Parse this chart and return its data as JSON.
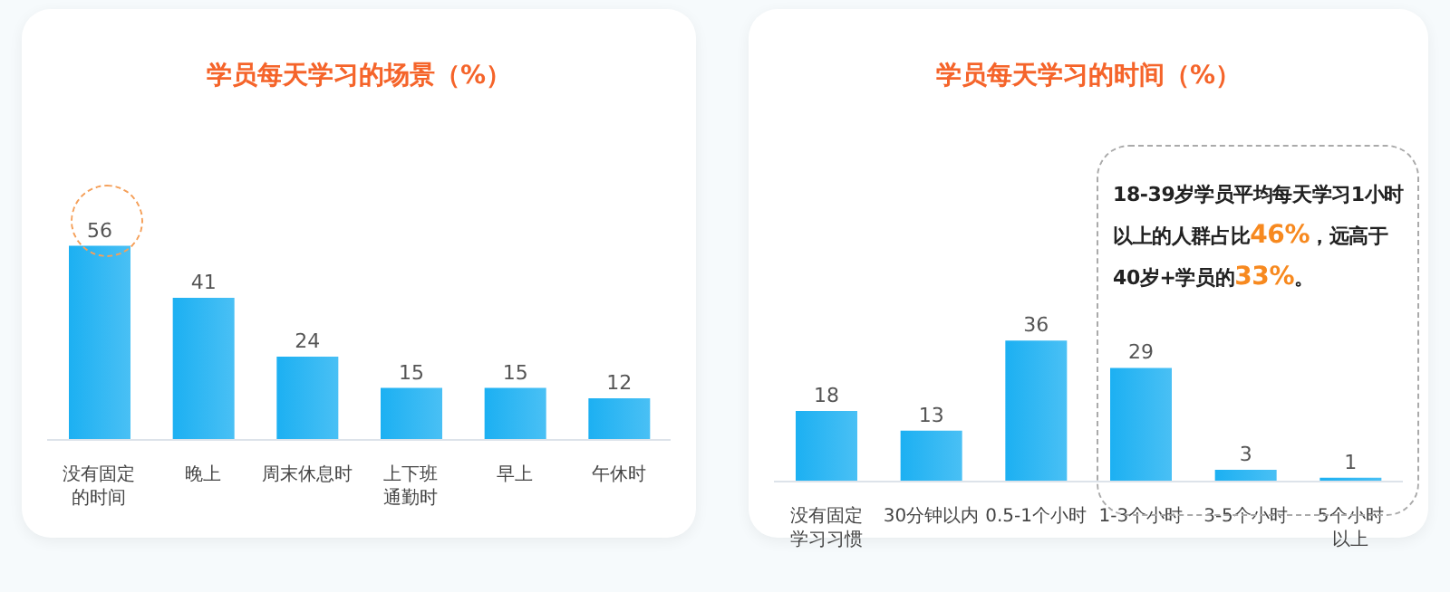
{
  "chart_data": [
    {
      "type": "bar",
      "title": "学员每天学习的场景（%）",
      "categories": [
        "没有固定的时间",
        "晚上",
        "周末休息时",
        "上下班通勤时",
        "早上",
        "午休时"
      ],
      "values": [
        56,
        41,
        24,
        15,
        15,
        12
      ],
      "color": "#1cb0f2",
      "data_labels": true
    },
    {
      "type": "bar",
      "title": "学员每天学习的时间（%）",
      "categories": [
        "没有固定学习习惯",
        "30分钟以内",
        "0.5-1个小时",
        "1-3个小时",
        "3-5个小时",
        "5个小时以上"
      ],
      "values": [
        18,
        13,
        36,
        29,
        3,
        1
      ],
      "color": "#1cb0f2",
      "data_labels": true,
      "annotations": [
        "18-39岁学员平均每天学习1小时以上的人群占比46%，远高于40岁+学员的33%。"
      ]
    }
  ]
}
